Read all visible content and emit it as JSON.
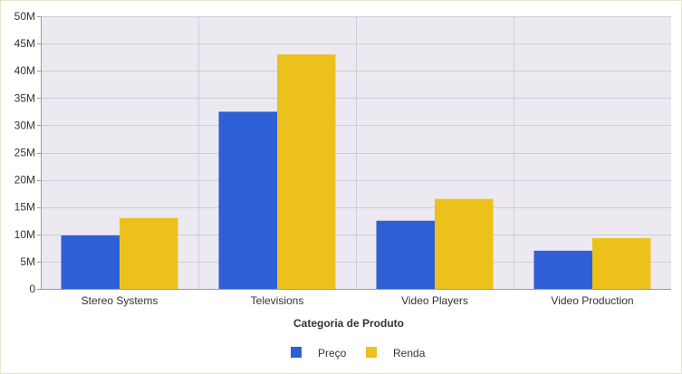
{
  "chart_data": {
    "type": "bar",
    "title": "",
    "xlabel": "Categoria de Produto",
    "ylabel": "",
    "categories": [
      "Stereo Systems",
      "Televisions",
      "Video Players",
      "Video Production"
    ],
    "series": [
      {
        "name": "Preço",
        "color": "#2f5fd5",
        "values": [
          9.8,
          32.5,
          12.5,
          7.0
        ]
      },
      {
        "name": "Renda",
        "color": "#ecc11c",
        "values": [
          13.0,
          43.0,
          16.5,
          9.3
        ]
      }
    ],
    "ylim": [
      0,
      50
    ],
    "yticks": [
      0,
      5,
      10,
      15,
      20,
      25,
      30,
      35,
      40,
      45,
      50
    ],
    "ytick_labels": [
      "0",
      "5M",
      "10M",
      "15M",
      "20M",
      "25M",
      "30M",
      "35M",
      "40M",
      "45M",
      "50M"
    ],
    "grid": true,
    "legend_position": "bottom-center",
    "plot_background": "#eceaf0"
  }
}
